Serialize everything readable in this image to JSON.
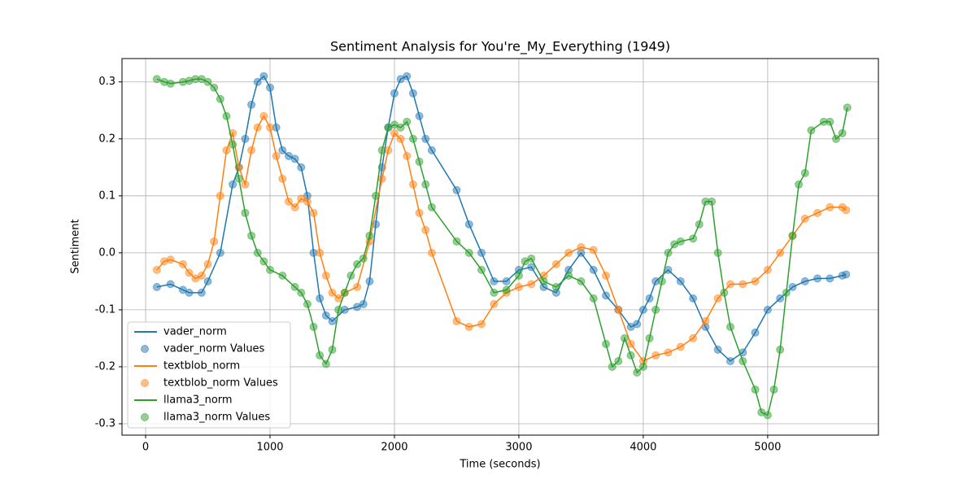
{
  "chart_data": {
    "type": "line",
    "title": "Sentiment Analysis for You're_My_Everything (1949)",
    "x_label": "Time (seconds)",
    "y_label": "Sentiment",
    "xlim": [
      -190,
      5890
    ],
    "ylim": [
      -0.32,
      0.341
    ],
    "xticks": [
      0,
      1000,
      2000,
      3000,
      4000,
      5000
    ],
    "yticks": [
      -0.3,
      -0.2,
      -0.1,
      {
        "value": 0,
        "label": "0.0"
      },
      0.1,
      0.2,
      0.3
    ],
    "grid": true,
    "legend": "lower left",
    "series": [
      {
        "name": "vader_norm",
        "points_name": "vader_norm Values",
        "color": "#1f77b4",
        "x": [
          90,
          200,
          300,
          350,
          450,
          500,
          600,
          700,
          750,
          800,
          850,
          900,
          950,
          1000,
          1050,
          1100,
          1150,
          1200,
          1250,
          1300,
          1350,
          1400,
          1450,
          1500,
          1600,
          1700,
          1750,
          1800,
          1850,
          1900,
          1950,
          2000,
          2050,
          2100,
          2150,
          2200,
          2250,
          2300,
          2500,
          2600,
          2700,
          2800,
          2900,
          3000,
          3100,
          3200,
          3300,
          3400,
          3500,
          3600,
          3700,
          3800,
          3900,
          3950,
          4000,
          4050,
          4100,
          4200,
          4300,
          4400,
          4500,
          4600,
          4700,
          4800,
          4900,
          5000,
          5100,
          5200,
          5300,
          5400,
          5500,
          5600,
          5630
        ],
        "values": [
          -0.06,
          -0.055,
          -0.065,
          -0.07,
          -0.07,
          -0.05,
          0.0,
          0.12,
          0.15,
          0.2,
          0.26,
          0.3,
          0.31,
          0.29,
          0.22,
          0.18,
          0.17,
          0.165,
          0.15,
          0.1,
          0.0,
          -0.08,
          -0.11,
          -0.12,
          -0.1,
          -0.095,
          -0.09,
          -0.05,
          0.05,
          0.15,
          0.22,
          0.28,
          0.305,
          0.31,
          0.28,
          0.24,
          0.2,
          0.18,
          0.11,
          0.05,
          0.0,
          -0.05,
          -0.05,
          -0.03,
          -0.025,
          -0.06,
          -0.07,
          -0.03,
          0.0,
          -0.03,
          -0.075,
          -0.1,
          -0.13,
          -0.125,
          -0.1,
          -0.08,
          -0.05,
          -0.03,
          -0.05,
          -0.08,
          -0.13,
          -0.17,
          -0.19,
          -0.175,
          -0.14,
          -0.1,
          -0.08,
          -0.06,
          -0.05,
          -0.045,
          -0.045,
          -0.04,
          -0.038
        ]
      },
      {
        "name": "textblob_norm",
        "points_name": "textblob_norm Values",
        "color": "#ff7f0e",
        "x": [
          90,
          150,
          200,
          300,
          350,
          400,
          450,
          500,
          550,
          600,
          650,
          700,
          750,
          800,
          850,
          900,
          950,
          1000,
          1050,
          1100,
          1150,
          1200,
          1250,
          1300,
          1350,
          1400,
          1450,
          1500,
          1550,
          1600,
          1700,
          1800,
          1900,
          1950,
          2000,
          2050,
          2100,
          2150,
          2200,
          2250,
          2300,
          2500,
          2600,
          2700,
          2800,
          2900,
          3000,
          3100,
          3200,
          3300,
          3400,
          3500,
          3600,
          3700,
          3800,
          3900,
          4000,
          4100,
          4200,
          4300,
          4400,
          4500,
          4600,
          4700,
          4800,
          4900,
          5000,
          5100,
          5200,
          5300,
          5400,
          5500,
          5600,
          5630
        ],
        "values": [
          -0.03,
          -0.015,
          -0.012,
          -0.02,
          -0.035,
          -0.045,
          -0.04,
          -0.02,
          0.02,
          0.1,
          0.18,
          0.21,
          0.15,
          0.12,
          0.18,
          0.22,
          0.24,
          0.22,
          0.17,
          0.13,
          0.09,
          0.08,
          0.095,
          0.09,
          0.07,
          0.0,
          -0.04,
          -0.07,
          -0.08,
          -0.07,
          -0.06,
          0.02,
          0.13,
          0.18,
          0.21,
          0.2,
          0.17,
          0.12,
          0.07,
          0.04,
          0.0,
          -0.12,
          -0.13,
          -0.125,
          -0.09,
          -0.07,
          -0.06,
          -0.055,
          -0.04,
          -0.02,
          0.0,
          0.01,
          0.005,
          -0.04,
          -0.1,
          -0.16,
          -0.19,
          -0.18,
          -0.175,
          -0.165,
          -0.15,
          -0.12,
          -0.08,
          -0.055,
          -0.055,
          -0.05,
          -0.03,
          0.0,
          0.03,
          0.06,
          0.07,
          0.08,
          0.08,
          0.075
        ]
      },
      {
        "name": "llama3_norm",
        "points_name": "llama3_norm Values",
        "color": "#2ca02c",
        "x": [
          90,
          150,
          200,
          300,
          350,
          400,
          450,
          500,
          550,
          600,
          650,
          700,
          750,
          800,
          850,
          900,
          950,
          1000,
          1100,
          1200,
          1250,
          1300,
          1350,
          1400,
          1450,
          1500,
          1550,
          1600,
          1650,
          1700,
          1750,
          1800,
          1850,
          1900,
          1950,
          2000,
          2050,
          2100,
          2150,
          2200,
          2250,
          2300,
          2500,
          2600,
          2700,
          2800,
          2900,
          3000,
          3050,
          3100,
          3200,
          3300,
          3400,
          3500,
          3600,
          3700,
          3750,
          3800,
          3850,
          3900,
          3950,
          4000,
          4050,
          4100,
          4150,
          4200,
          4250,
          4300,
          4400,
          4450,
          4500,
          4550,
          4600,
          4650,
          4700,
          4800,
          4900,
          4950,
          5000,
          5050,
          5100,
          5150,
          5200,
          5250,
          5300,
          5350,
          5450,
          5500,
          5550,
          5600,
          5640
        ],
        "values": [
          0.305,
          0.3,
          0.297,
          0.3,
          0.302,
          0.305,
          0.305,
          0.3,
          0.29,
          0.27,
          0.24,
          0.19,
          0.13,
          0.07,
          0.03,
          0.0,
          -0.015,
          -0.03,
          -0.04,
          -0.06,
          -0.07,
          -0.09,
          -0.13,
          -0.18,
          -0.195,
          -0.17,
          -0.1,
          -0.07,
          -0.04,
          -0.02,
          -0.01,
          0.03,
          0.1,
          0.18,
          0.22,
          0.225,
          0.22,
          0.23,
          0.2,
          0.16,
          0.12,
          0.08,
          0.02,
          0.0,
          -0.03,
          -0.07,
          -0.065,
          -0.04,
          -0.015,
          -0.01,
          -0.05,
          -0.06,
          -0.04,
          -0.05,
          -0.08,
          -0.16,
          -0.2,
          -0.19,
          -0.15,
          -0.18,
          -0.21,
          -0.2,
          -0.15,
          -0.1,
          -0.05,
          0.0,
          0.015,
          0.02,
          0.025,
          0.05,
          0.09,
          0.09,
          0.0,
          -0.07,
          -0.13,
          -0.19,
          -0.24,
          -0.28,
          -0.285,
          -0.24,
          -0.17,
          -0.07,
          0.03,
          0.12,
          0.14,
          0.215,
          0.23,
          0.23,
          0.2,
          0.21,
          0.255
        ]
      }
    ]
  }
}
